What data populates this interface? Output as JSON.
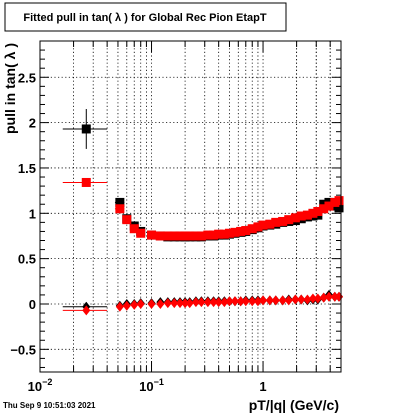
{
  "chart_data": {
    "type": "scatter",
    "title": "Fitted pull in tan( λ ) for Global Rec Pion EtapT",
    "xlabel": "pT/|q| (GeV/c)",
    "ylabel": "pull in tan( λ )",
    "footer": "Thu Sep  9 10:51:03 2021",
    "x_scale": "log",
    "xlim": [
      0.01,
      5.0
    ],
    "ylim": [
      -0.75,
      2.9
    ],
    "grid": true,
    "x_ticks": [
      {
        "value": 0.01,
        "base": "10",
        "exp": "−2"
      },
      {
        "value": 0.1,
        "base": "10",
        "exp": "−1"
      },
      {
        "value": 1,
        "base": "1",
        "exp": ""
      }
    ],
    "y_ticks": [
      {
        "value": -0.5,
        "label": "−0.5"
      },
      {
        "value": 0,
        "label": "0"
      },
      {
        "value": 0.5,
        "label": "0.5"
      },
      {
        "value": 1,
        "label": "1"
      },
      {
        "value": 1.5,
        "label": "1.5"
      },
      {
        "value": 2,
        "label": "2"
      },
      {
        "value": 2.5,
        "label": "2.5"
      }
    ],
    "colors": {
      "black": "#000000",
      "red": "#ff0000"
    },
    "series": [
      {
        "color": "#000000",
        "marker": "square",
        "points": [
          {
            "x": 0.026,
            "y": 1.93,
            "xerr": [
              0.016,
              0.04
            ],
            "yerr": 0.22
          },
          {
            "x": 0.052,
            "y": 1.12,
            "xerr": [
              0.047,
              0.057
            ],
            "yerr": 0.0
          },
          {
            "x": 0.06,
            "y": 0.94
          },
          {
            "x": 0.07,
            "y": 0.86
          },
          {
            "x": 0.08,
            "y": 0.8
          },
          {
            "x": 0.1,
            "y": 0.76
          },
          {
            "x": 0.12,
            "y": 0.75
          },
          {
            "x": 0.14,
            "y": 0.74
          },
          {
            "x": 0.16,
            "y": 0.74
          },
          {
            "x": 0.18,
            "y": 0.74
          },
          {
            "x": 0.2,
            "y": 0.74
          },
          {
            "x": 0.22,
            "y": 0.74
          },
          {
            "x": 0.25,
            "y": 0.74
          },
          {
            "x": 0.28,
            "y": 0.74
          },
          {
            "x": 0.32,
            "y": 0.75
          },
          {
            "x": 0.36,
            "y": 0.75
          },
          {
            "x": 0.4,
            "y": 0.76
          },
          {
            "x": 0.45,
            "y": 0.76
          },
          {
            "x": 0.5,
            "y": 0.77
          },
          {
            "x": 0.56,
            "y": 0.78
          },
          {
            "x": 0.63,
            "y": 0.79
          },
          {
            "x": 0.7,
            "y": 0.8
          },
          {
            "x": 0.8,
            "y": 0.82
          },
          {
            "x": 0.9,
            "y": 0.84
          },
          {
            "x": 1.0,
            "y": 0.86
          },
          {
            "x": 1.15,
            "y": 0.87
          },
          {
            "x": 1.3,
            "y": 0.88
          },
          {
            "x": 1.5,
            "y": 0.9
          },
          {
            "x": 1.7,
            "y": 0.91
          },
          {
            "x": 1.95,
            "y": 0.92
          },
          {
            "x": 2.2,
            "y": 0.94
          },
          {
            "x": 2.5,
            "y": 0.96
          },
          {
            "x": 2.8,
            "y": 0.97
          },
          {
            "x": 3.1,
            "y": 0.98
          },
          {
            "x": 3.5,
            "y": 1.1
          },
          {
            "x": 3.9,
            "y": 1.12
          },
          {
            "x": 4.4,
            "y": 1.08
          },
          {
            "x": 4.8,
            "y": 1.06
          }
        ]
      },
      {
        "color": "#ff0000",
        "marker": "square",
        "points": [
          {
            "x": 0.026,
            "y": 1.34,
            "xerr": [
              0.016,
              0.04
            ],
            "yerr": 0.0
          },
          {
            "x": 0.052,
            "y": 1.05,
            "xerr": [
              0.047,
              0.057
            ],
            "yerr": 0.0
          },
          {
            "x": 0.06,
            "y": 0.93
          },
          {
            "x": 0.07,
            "y": 0.83
          },
          {
            "x": 0.08,
            "y": 0.78
          },
          {
            "x": 0.1,
            "y": 0.76
          },
          {
            "x": 0.12,
            "y": 0.75
          },
          {
            "x": 0.14,
            "y": 0.75
          },
          {
            "x": 0.16,
            "y": 0.75
          },
          {
            "x": 0.18,
            "y": 0.75
          },
          {
            "x": 0.2,
            "y": 0.75
          },
          {
            "x": 0.22,
            "y": 0.75
          },
          {
            "x": 0.25,
            "y": 0.75
          },
          {
            "x": 0.28,
            "y": 0.75
          },
          {
            "x": 0.32,
            "y": 0.76
          },
          {
            "x": 0.36,
            "y": 0.76
          },
          {
            "x": 0.4,
            "y": 0.77
          },
          {
            "x": 0.45,
            "y": 0.77
          },
          {
            "x": 0.5,
            "y": 0.78
          },
          {
            "x": 0.56,
            "y": 0.79
          },
          {
            "x": 0.63,
            "y": 0.8
          },
          {
            "x": 0.7,
            "y": 0.81
          },
          {
            "x": 0.8,
            "y": 0.83
          },
          {
            "x": 0.9,
            "y": 0.85
          },
          {
            "x": 1.0,
            "y": 0.87
          },
          {
            "x": 1.15,
            "y": 0.88
          },
          {
            "x": 1.3,
            "y": 0.9
          },
          {
            "x": 1.5,
            "y": 0.91
          },
          {
            "x": 1.7,
            "y": 0.93
          },
          {
            "x": 1.95,
            "y": 0.95
          },
          {
            "x": 2.2,
            "y": 0.97
          },
          {
            "x": 2.5,
            "y": 0.98
          },
          {
            "x": 2.8,
            "y": 1.0
          },
          {
            "x": 3.1,
            "y": 1.02
          },
          {
            "x": 3.5,
            "y": 1.05
          },
          {
            "x": 3.9,
            "y": 1.08
          },
          {
            "x": 4.4,
            "y": 1.12
          },
          {
            "x": 4.8,
            "y": 1.14
          }
        ]
      },
      {
        "color": "#000000",
        "marker": "diamond",
        "points": [
          {
            "x": 0.026,
            "y": -0.03,
            "xerr": [
              0.016,
              0.04
            ],
            "yerr": 0.05
          },
          {
            "x": 0.052,
            "y": -0.02
          },
          {
            "x": 0.06,
            "y": 0.0
          },
          {
            "x": 0.07,
            "y": 0.0
          },
          {
            "x": 0.08,
            "y": 0.01
          },
          {
            "x": 0.1,
            "y": 0.01
          },
          {
            "x": 0.12,
            "y": 0.02
          },
          {
            "x": 0.14,
            "y": 0.02
          },
          {
            "x": 0.16,
            "y": 0.02
          },
          {
            "x": 0.18,
            "y": 0.02
          },
          {
            "x": 0.2,
            "y": 0.02
          },
          {
            "x": 0.22,
            "y": 0.02
          },
          {
            "x": 0.25,
            "y": 0.03
          },
          {
            "x": 0.28,
            "y": 0.03
          },
          {
            "x": 0.32,
            "y": 0.03
          },
          {
            "x": 0.36,
            "y": 0.03
          },
          {
            "x": 0.4,
            "y": 0.03
          },
          {
            "x": 0.45,
            "y": 0.03
          },
          {
            "x": 0.5,
            "y": 0.03
          },
          {
            "x": 0.56,
            "y": 0.03
          },
          {
            "x": 0.63,
            "y": 0.03
          },
          {
            "x": 0.7,
            "y": 0.04
          },
          {
            "x": 0.8,
            "y": 0.04
          },
          {
            "x": 0.9,
            "y": 0.04
          },
          {
            "x": 1.0,
            "y": 0.04
          },
          {
            "x": 1.15,
            "y": 0.04
          },
          {
            "x": 1.3,
            "y": 0.04
          },
          {
            "x": 1.5,
            "y": 0.04
          },
          {
            "x": 1.7,
            "y": 0.05
          },
          {
            "x": 1.95,
            "y": 0.05
          },
          {
            "x": 2.2,
            "y": 0.05
          },
          {
            "x": 2.5,
            "y": 0.04
          },
          {
            "x": 2.8,
            "y": 0.05
          },
          {
            "x": 3.1,
            "y": 0.05
          },
          {
            "x": 3.5,
            "y": 0.07
          },
          {
            "x": 3.9,
            "y": 0.1
          },
          {
            "x": 4.4,
            "y": 0.08
          },
          {
            "x": 4.8,
            "y": 0.08
          }
        ]
      },
      {
        "color": "#ff0000",
        "marker": "diamond",
        "points": [
          {
            "x": 0.026,
            "y": -0.07,
            "xerr": [
              0.016,
              0.04
            ],
            "yerr": 0.0
          },
          {
            "x": 0.052,
            "y": -0.03
          },
          {
            "x": 0.06,
            "y": -0.02
          },
          {
            "x": 0.07,
            "y": -0.01
          },
          {
            "x": 0.08,
            "y": 0.0
          },
          {
            "x": 0.1,
            "y": 0.0
          },
          {
            "x": 0.12,
            "y": 0.0
          },
          {
            "x": 0.14,
            "y": 0.01
          },
          {
            "x": 0.16,
            "y": 0.01
          },
          {
            "x": 0.18,
            "y": 0.01
          },
          {
            "x": 0.2,
            "y": 0.01
          },
          {
            "x": 0.22,
            "y": 0.01
          },
          {
            "x": 0.25,
            "y": 0.02
          },
          {
            "x": 0.28,
            "y": 0.02
          },
          {
            "x": 0.32,
            "y": 0.02
          },
          {
            "x": 0.36,
            "y": 0.02
          },
          {
            "x": 0.4,
            "y": 0.02
          },
          {
            "x": 0.45,
            "y": 0.02
          },
          {
            "x": 0.5,
            "y": 0.03
          },
          {
            "x": 0.56,
            "y": 0.03
          },
          {
            "x": 0.63,
            "y": 0.03
          },
          {
            "x": 0.7,
            "y": 0.03
          },
          {
            "x": 0.8,
            "y": 0.03
          },
          {
            "x": 0.9,
            "y": 0.03
          },
          {
            "x": 1.0,
            "y": 0.04
          },
          {
            "x": 1.15,
            "y": 0.04
          },
          {
            "x": 1.3,
            "y": 0.04
          },
          {
            "x": 1.5,
            "y": 0.04
          },
          {
            "x": 1.7,
            "y": 0.04
          },
          {
            "x": 1.95,
            "y": 0.05
          },
          {
            "x": 2.2,
            "y": 0.05
          },
          {
            "x": 2.5,
            "y": 0.05
          },
          {
            "x": 2.8,
            "y": 0.06
          },
          {
            "x": 3.1,
            "y": 0.06
          },
          {
            "x": 3.5,
            "y": 0.07
          },
          {
            "x": 3.9,
            "y": 0.08
          },
          {
            "x": 4.4,
            "y": 0.08
          },
          {
            "x": 4.8,
            "y": 0.08
          }
        ]
      }
    ]
  }
}
